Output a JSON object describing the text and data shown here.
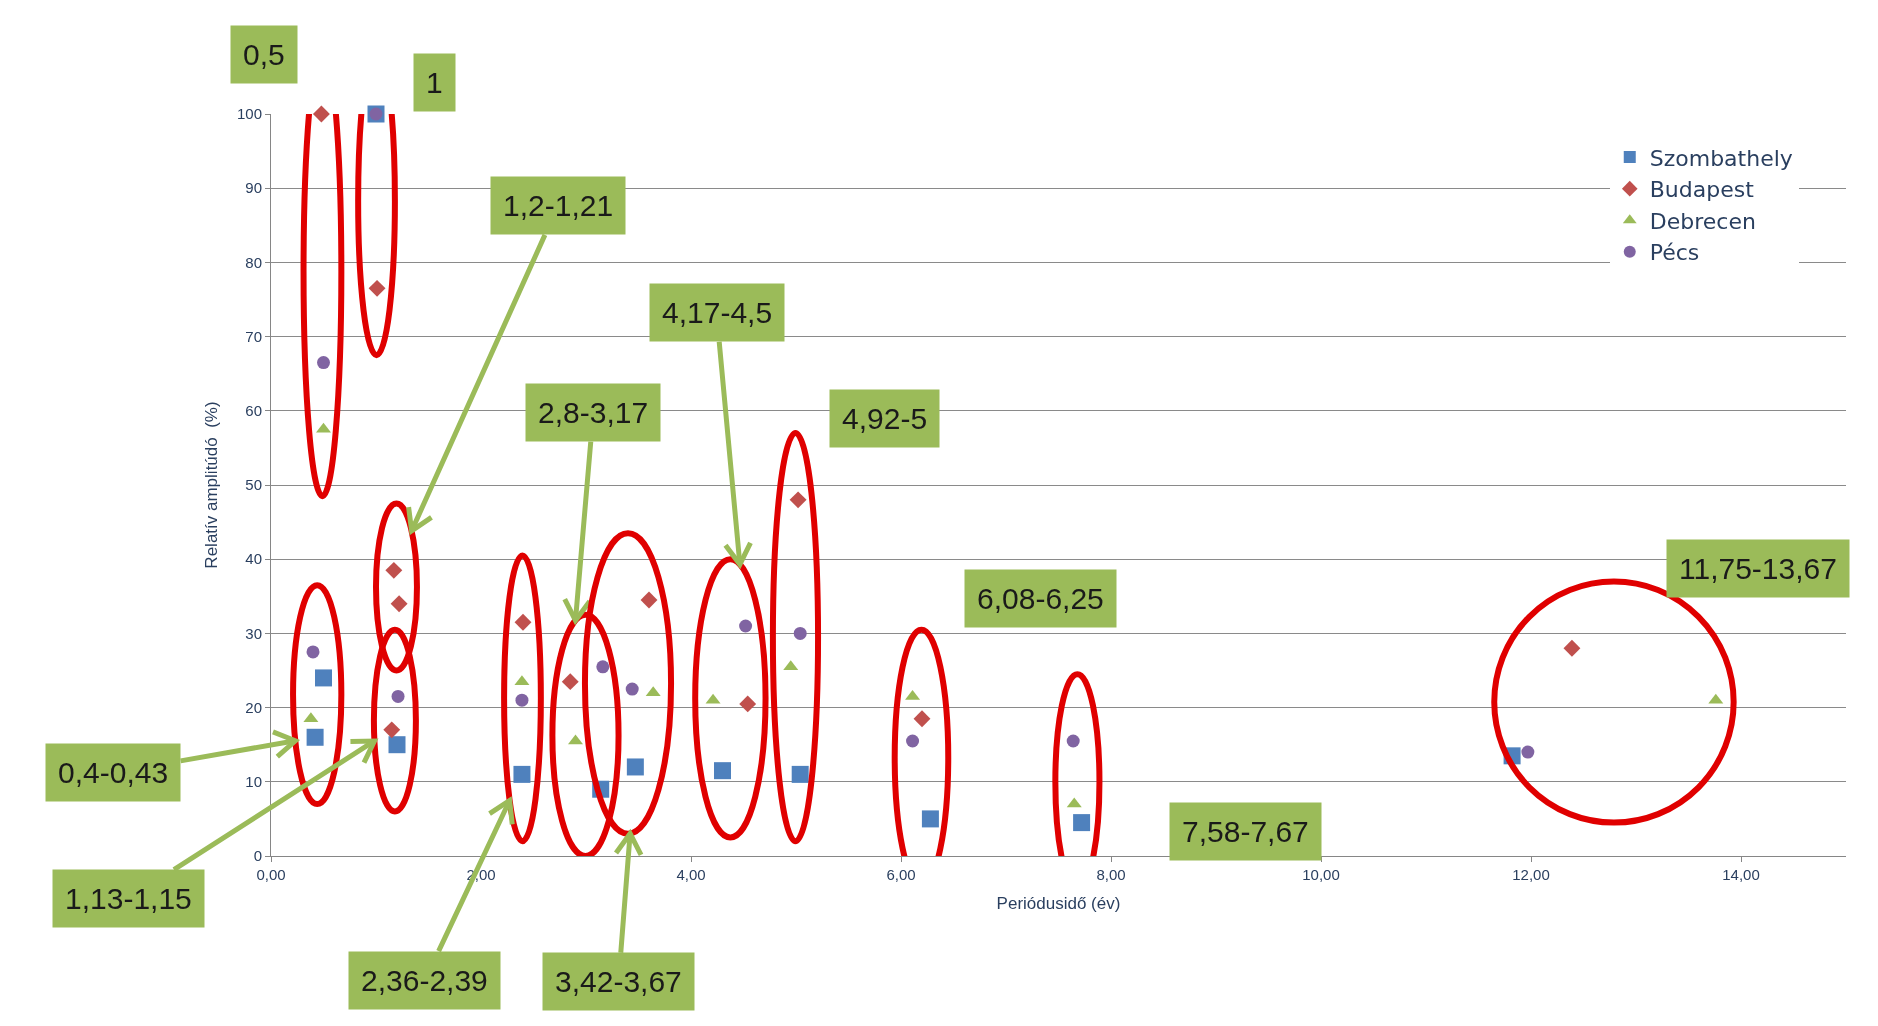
{
  "chart_data": {
    "type": "scatter",
    "xlabel": "Periódusidő (év)",
    "ylabel": "Relatív amplitúdó  (%)",
    "xlim": [
      0,
      15
    ],
    "xticks": [
      {
        "value": 0,
        "label": "0,00"
      },
      {
        "value": 2,
        "label": "2,00"
      },
      {
        "value": 4,
        "label": "4,00"
      },
      {
        "value": 6,
        "label": "6,00"
      },
      {
        "value": 8,
        "label": "8,00"
      },
      {
        "value": 10,
        "label": "10,00"
      },
      {
        "value": 12,
        "label": "12,00"
      },
      {
        "value": 14,
        "label": "14,00"
      }
    ],
    "ylim": [
      0,
      100
    ],
    "yticks": [
      0,
      10,
      20,
      30,
      40,
      50,
      60,
      70,
      80,
      90,
      100
    ],
    "grid": "y",
    "legend": "top right",
    "series": [
      {
        "name": "Szombathely",
        "color": "#4f81bd",
        "marker": "square",
        "x": [
          0.42,
          0.5,
          1.0,
          1.2,
          2.39,
          3.14,
          3.47,
          4.3,
          5.04,
          6.28,
          7.72,
          11.82
        ],
        "values": [
          16,
          24,
          100,
          15,
          11,
          9,
          12,
          11.5,
          11,
          5,
          4.5,
          13.5
        ]
      },
      {
        "name": "Budapest",
        "color": "#c0504d",
        "marker": "diamond",
        "x": [
          0.48,
          1.01,
          1.15,
          1.17,
          1.22,
          2.4,
          2.85,
          3.6,
          4.54,
          5.02,
          6.2,
          12.39
        ],
        "values": [
          100,
          76.5,
          17,
          38.5,
          34,
          31.5,
          23.5,
          34.5,
          20.5,
          48,
          18.5,
          28
        ]
      },
      {
        "name": "Debrecen",
        "color": "#9bbb59",
        "marker": "triangle",
        "x": [
          0.38,
          0.5,
          2.39,
          2.9,
          3.64,
          4.21,
          4.95,
          6.11,
          7.65,
          13.76
        ],
        "values": [
          18.5,
          57.5,
          23.5,
          15.5,
          22,
          21,
          25.5,
          21.5,
          7,
          21
        ]
      },
      {
        "name": "Pécs",
        "color": "#8064a2",
        "marker": "circle",
        "x": [
          0.4,
          0.5,
          1.0,
          1.21,
          2.39,
          3.16,
          3.44,
          4.52,
          5.04,
          6.11,
          7.64,
          11.97
        ],
        "values": [
          27.5,
          66.5,
          100,
          21.5,
          21,
          25.5,
          22.5,
          31,
          30,
          15.5,
          15.5,
          14
        ]
      }
    ],
    "annotations": [
      "0,5",
      "1",
      {
        "text": "1,2-1,21",
        "x": 1.17,
        "y": 38.5
      },
      {
        "text": "4,17-4,5",
        "x": 4.52,
        "y": 31
      },
      {
        "text": "2,8-3,17",
        "x": 2.85,
        "y": 23.5
      },
      "4,92-5",
      {
        "text": "0,4-0,43",
        "x": 0.42,
        "y": 16
      },
      "6,08-6,25",
      "11,75-13,67",
      {
        "text": "1,13-1,15",
        "x": 1.15,
        "y": 17
      },
      {
        "text": "2,36-2,39",
        "x": 2.39,
        "y": 11
      },
      "7,58-7,67",
      {
        "text": "3,42-3,67",
        "x": 3.47,
        "y": 12
      }
    ]
  }
}
